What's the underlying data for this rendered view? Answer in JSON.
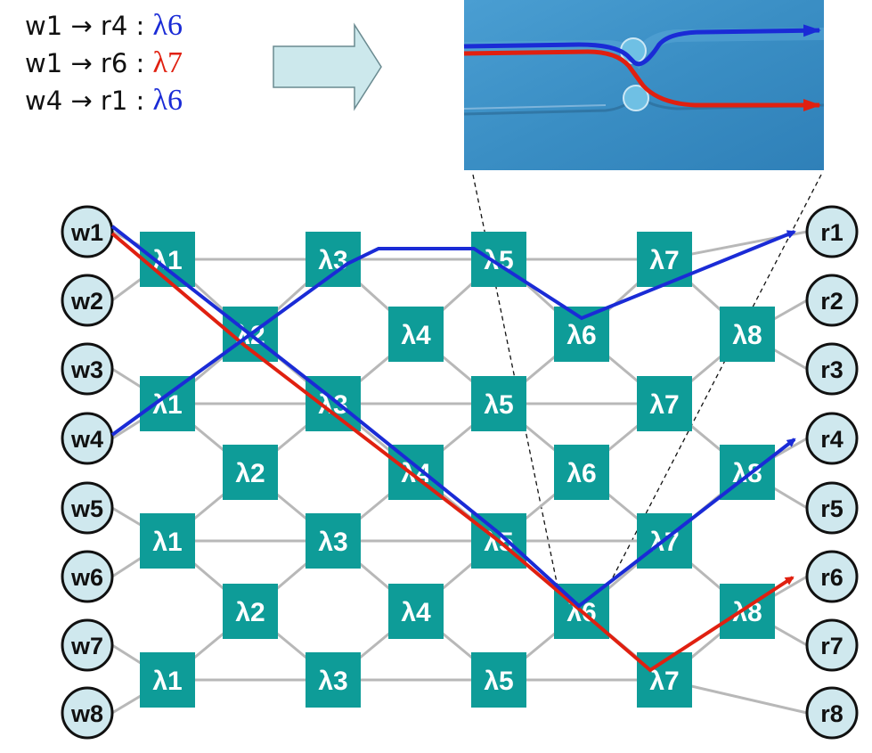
{
  "legend": [
    {
      "src": "w1",
      "arrow": "→",
      "dst": "r4",
      "sep": ":",
      "wavelength": "λ6",
      "color": "#1a2bd6"
    },
    {
      "src": "w1",
      "arrow": "→",
      "dst": "r6",
      "sep": ":",
      "wavelength": "λ7",
      "color": "#e02010"
    },
    {
      "src": "w4",
      "arrow": "→",
      "dst": "r1",
      "sep": ":",
      "wavelength": "λ6",
      "color": "#1a2bd6"
    }
  ],
  "colors": {
    "node_fill": "#cfe8ee",
    "switch_fill": "#0e9c98",
    "edge": "#b8b8b8",
    "blue_path": "#1a2bd6",
    "red_path": "#e02010",
    "arrow_fill": "#cce8ec",
    "photo_bg": "#3a8ec4"
  },
  "writers": [
    "w1",
    "w2",
    "w3",
    "w4",
    "w5",
    "w6",
    "w7",
    "w8"
  ],
  "readers": [
    "r1",
    "r2",
    "r3",
    "r4",
    "r5",
    "r6",
    "r7",
    "r8"
  ],
  "switch_columns": [
    {
      "labels": [
        "λ1",
        "λ1",
        "λ1",
        "λ1"
      ]
    },
    {
      "labels": [
        "λ2",
        "λ2",
        "λ2"
      ]
    },
    {
      "labels": [
        "λ3",
        "λ3",
        "λ3",
        "λ3"
      ]
    },
    {
      "labels": [
        "λ4",
        "λ4",
        "λ4"
      ]
    },
    {
      "labels": [
        "λ5",
        "λ5",
        "λ5",
        "λ5"
      ]
    },
    {
      "labels": [
        "λ6",
        "λ6",
        "λ6"
      ]
    },
    {
      "labels": [
        "λ7",
        "λ7",
        "λ7",
        "λ7"
      ]
    },
    {
      "labels": [
        "λ8",
        "λ8",
        "λ8"
      ]
    }
  ]
}
